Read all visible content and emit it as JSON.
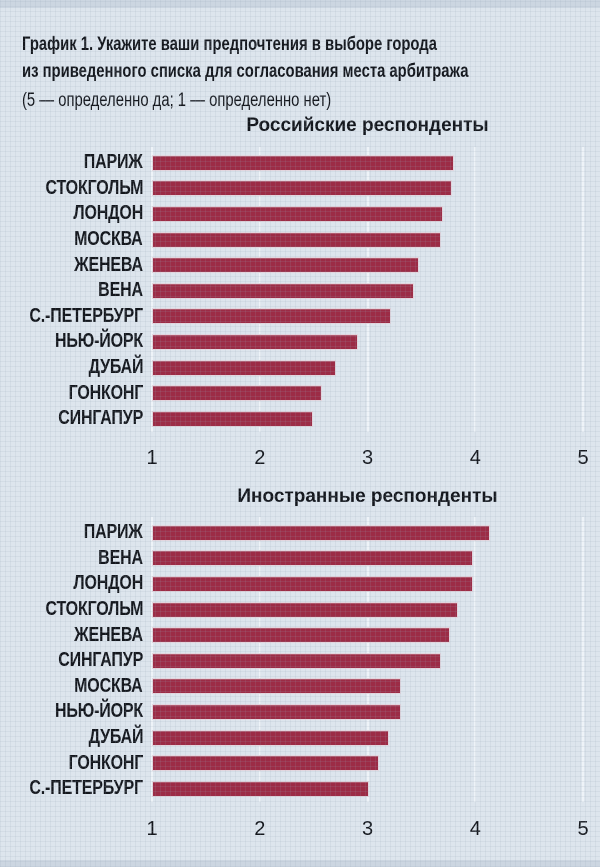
{
  "header": {
    "title_line1": "График 1. Укажите ваши предпочтения в выборе города",
    "title_line2": "из приведенного списка для согласования места арбитража",
    "subtitle": "(5 — определенно да; 1 — определенно нет)"
  },
  "colors": {
    "background": "#dde5ed",
    "edge_band": "#ccd6e1",
    "bar": "#9c2c46",
    "gridline": "#eef3f8",
    "text": "#14171d"
  },
  "chart_data": [
    {
      "type": "bar",
      "orientation": "horizontal",
      "title": "Российские респонденты",
      "categories": [
        "ПАРИЖ",
        "СТОКГОЛЬМ",
        "ЛОНДОН",
        "МОСКВА",
        "ЖЕНЕВА",
        "ВЕНА",
        "С.-ПЕТЕРБУРГ",
        "НЬЮ-ЙОРК",
        "ДУБАЙ",
        "ГОНКОНГ",
        "СИНГАПУР"
      ],
      "values": [
        3.8,
        3.78,
        3.7,
        3.68,
        3.48,
        3.43,
        3.22,
        2.91,
        2.71,
        2.58,
        2.49
      ],
      "xlim": [
        1,
        5
      ],
      "xticks": [
        1,
        2,
        3,
        4,
        5
      ],
      "grid": true,
      "legend": "none"
    },
    {
      "type": "bar",
      "orientation": "horizontal",
      "title": "Иностранные респонденты",
      "categories": [
        "ПАРИЖ",
        "ВЕНА",
        "ЛОНДОН",
        "СТОКГОЛЬМ",
        "ЖЕНЕВА",
        "СИНГАПУР",
        "МОСКВА",
        "НЬЮ-ЙОРК",
        "ДУБАЙ",
        "ГОНКОНГ",
        "С.-ПЕТЕРБУРГ"
      ],
      "values": [
        4.14,
        3.98,
        3.98,
        3.84,
        3.77,
        3.68,
        3.31,
        3.31,
        3.2,
        3.11,
        3.01
      ],
      "xlim": [
        1,
        5
      ],
      "xticks": [
        1,
        2,
        3,
        4,
        5
      ],
      "grid": true,
      "legend": "none"
    }
  ]
}
